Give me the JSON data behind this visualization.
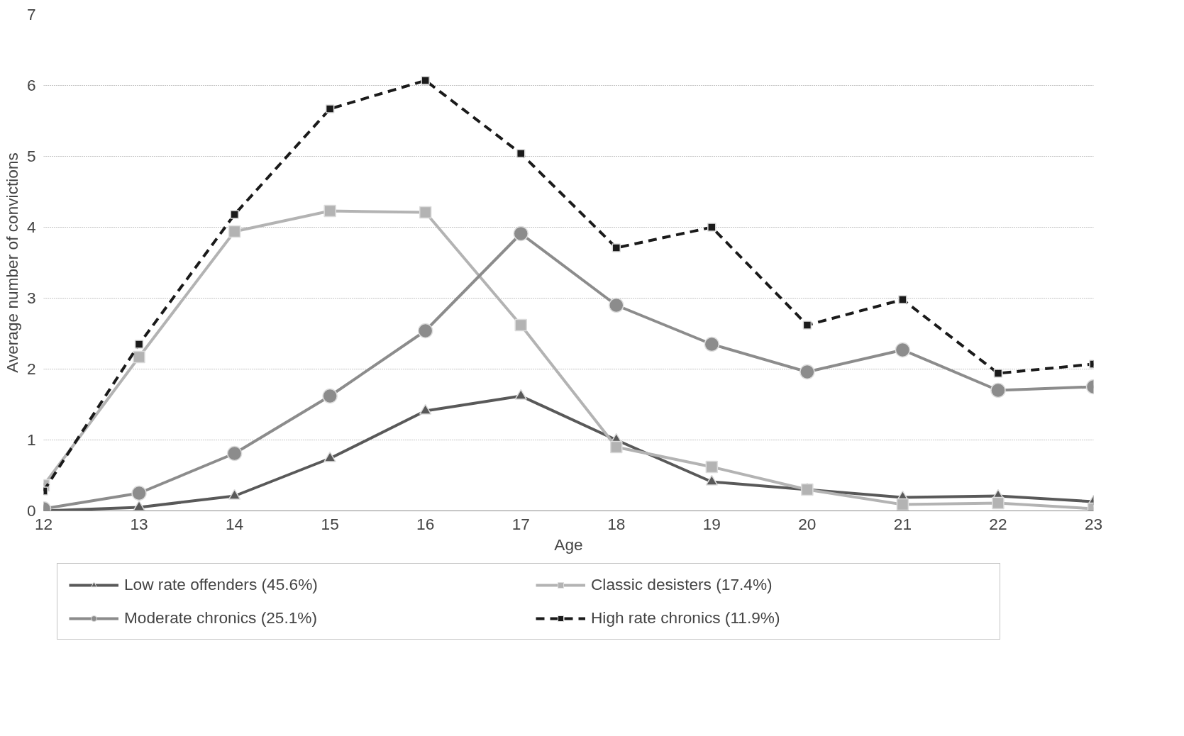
{
  "chart_data": {
    "type": "line",
    "xlabel": "Age",
    "ylabel": "Average number of convictions",
    "x": [
      12,
      13,
      14,
      15,
      16,
      17,
      18,
      19,
      20,
      21,
      22,
      23
    ],
    "xlim": [
      12,
      23
    ],
    "xticks": [
      12,
      13,
      14,
      15,
      16,
      17,
      18,
      19,
      20,
      21,
      22,
      23
    ],
    "ylim": [
      0,
      7
    ],
    "yticks": [
      0,
      1,
      2,
      3,
      4,
      5,
      6,
      7
    ],
    "grid": "y",
    "legend": "bottom",
    "series": [
      {
        "name": "Low rate offenders (45.6%)",
        "color": "#595959",
        "marker": "triangle",
        "line_style": "solid",
        "values": [
          0.0,
          0.05,
          0.21,
          0.74,
          1.41,
          1.62,
          1.0,
          0.41,
          0.3,
          0.19,
          0.21,
          0.13
        ]
      },
      {
        "name": "Classic desisters (17.4%)",
        "color": "#b3b3b3",
        "marker": "square",
        "line_style": "solid",
        "values": [
          0.36,
          2.17,
          3.94,
          4.23,
          4.21,
          2.62,
          0.9,
          0.62,
          0.3,
          0.09,
          0.11,
          0.03
        ]
      },
      {
        "name": "Moderate chronics (25.1%)",
        "color": "#8c8c8c",
        "marker": "circle",
        "line_style": "solid",
        "values": [
          0.03,
          0.25,
          0.81,
          1.62,
          2.54,
          3.91,
          2.9,
          2.35,
          1.96,
          2.27,
          1.7,
          1.75
        ]
      },
      {
        "name": "High rate chronics (11.9%)",
        "color": "#1a1a1a",
        "marker": "square",
        "line_style": "dashed",
        "values": [
          0.28,
          2.35,
          4.18,
          5.67,
          6.07,
          5.04,
          3.71,
          4.0,
          2.62,
          2.98,
          1.94,
          2.07
        ]
      }
    ]
  }
}
